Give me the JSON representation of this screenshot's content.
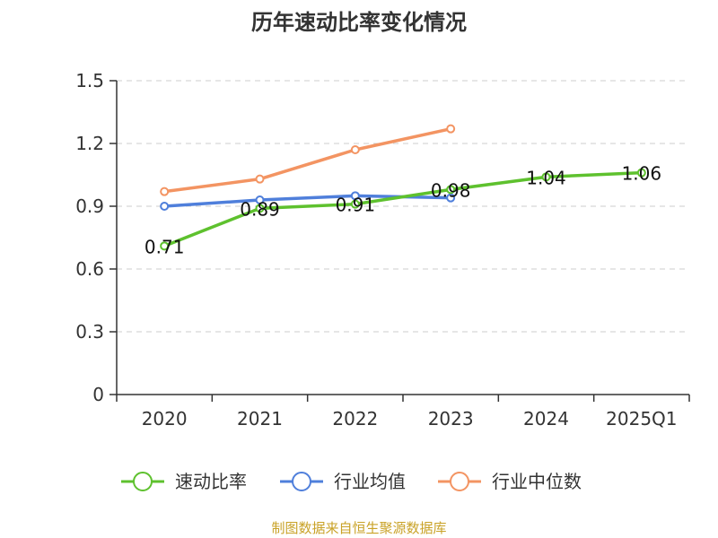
{
  "colors": {
    "quick_ratio": "#5ec12e",
    "industry_avg": "#4f7fdb",
    "industry_median": "#f39462",
    "source": "#c9a227",
    "grid": "#cccccc",
    "axis": "#333333"
  },
  "source_text": "制图数据来自恒生聚源数据库",
  "chart_data": {
    "type": "line",
    "title": "历年速动比率变化情况",
    "xlabel": "",
    "ylabel": "",
    "categories": [
      "2020",
      "2021",
      "2022",
      "2023",
      "2024",
      "2025Q1"
    ],
    "ylim": [
      0,
      1.5
    ],
    "yticks": [
      "0",
      "0.3",
      "0.6",
      "0.9",
      "1.2",
      "1.5"
    ],
    "grid": true,
    "legend_position": "bottom",
    "series": [
      {
        "name": "速动比率",
        "values": [
          0.71,
          0.89,
          0.91,
          0.98,
          1.04,
          1.06
        ],
        "color": "#5ec12e",
        "labels": [
          "0.71",
          "0.89",
          "0.91",
          "0.98",
          "1.04",
          "1.06"
        ]
      },
      {
        "name": "行业均值",
        "values": [
          0.9,
          0.93,
          0.95,
          0.94,
          null,
          null
        ],
        "color": "#4f7fdb"
      },
      {
        "name": "行业中位数",
        "values": [
          0.97,
          1.03,
          1.17,
          1.27,
          null,
          null
        ],
        "color": "#f39462"
      }
    ]
  }
}
